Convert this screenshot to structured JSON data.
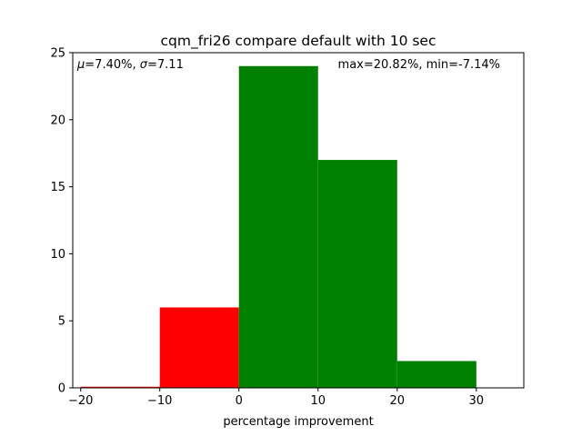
{
  "chart_data": {
    "type": "bar",
    "title": "cqm_fri26 compare default with 10 sec",
    "xlabel": "percentage improvement",
    "ylabel": "",
    "xlim": [
      -21,
      36
    ],
    "ylim": [
      0,
      25
    ],
    "xticks": [
      -20,
      -10,
      0,
      10,
      20,
      30
    ],
    "xtick_labels": [
      "−20",
      "−10",
      "0",
      "10",
      "20",
      "30"
    ],
    "yticks": [
      0,
      5,
      10,
      15,
      20,
      25
    ],
    "ytick_labels": [
      "0",
      "5",
      "10",
      "15",
      "20",
      "25"
    ],
    "grid": false,
    "bins": [
      {
        "left": -20,
        "right": -10,
        "count": 0,
        "color": "#ff0000"
      },
      {
        "left": -10,
        "right": 0,
        "count": 6,
        "color": "#ff0000"
      },
      {
        "left": 0,
        "right": 10,
        "count": 24,
        "color": "#008000"
      },
      {
        "left": 10,
        "right": 20,
        "count": 17,
        "color": "#008000"
      },
      {
        "left": 20,
        "right": 30,
        "count": 2,
        "color": "#008000"
      }
    ],
    "annotations": {
      "stats_left": {
        "mu_symbol": "μ",
        "mu_value": "=7.40%, ",
        "sigma_symbol": "σ",
        "sigma_value": "=7.11"
      },
      "stats_right": "max=20.82%, min=-7.14%"
    }
  }
}
